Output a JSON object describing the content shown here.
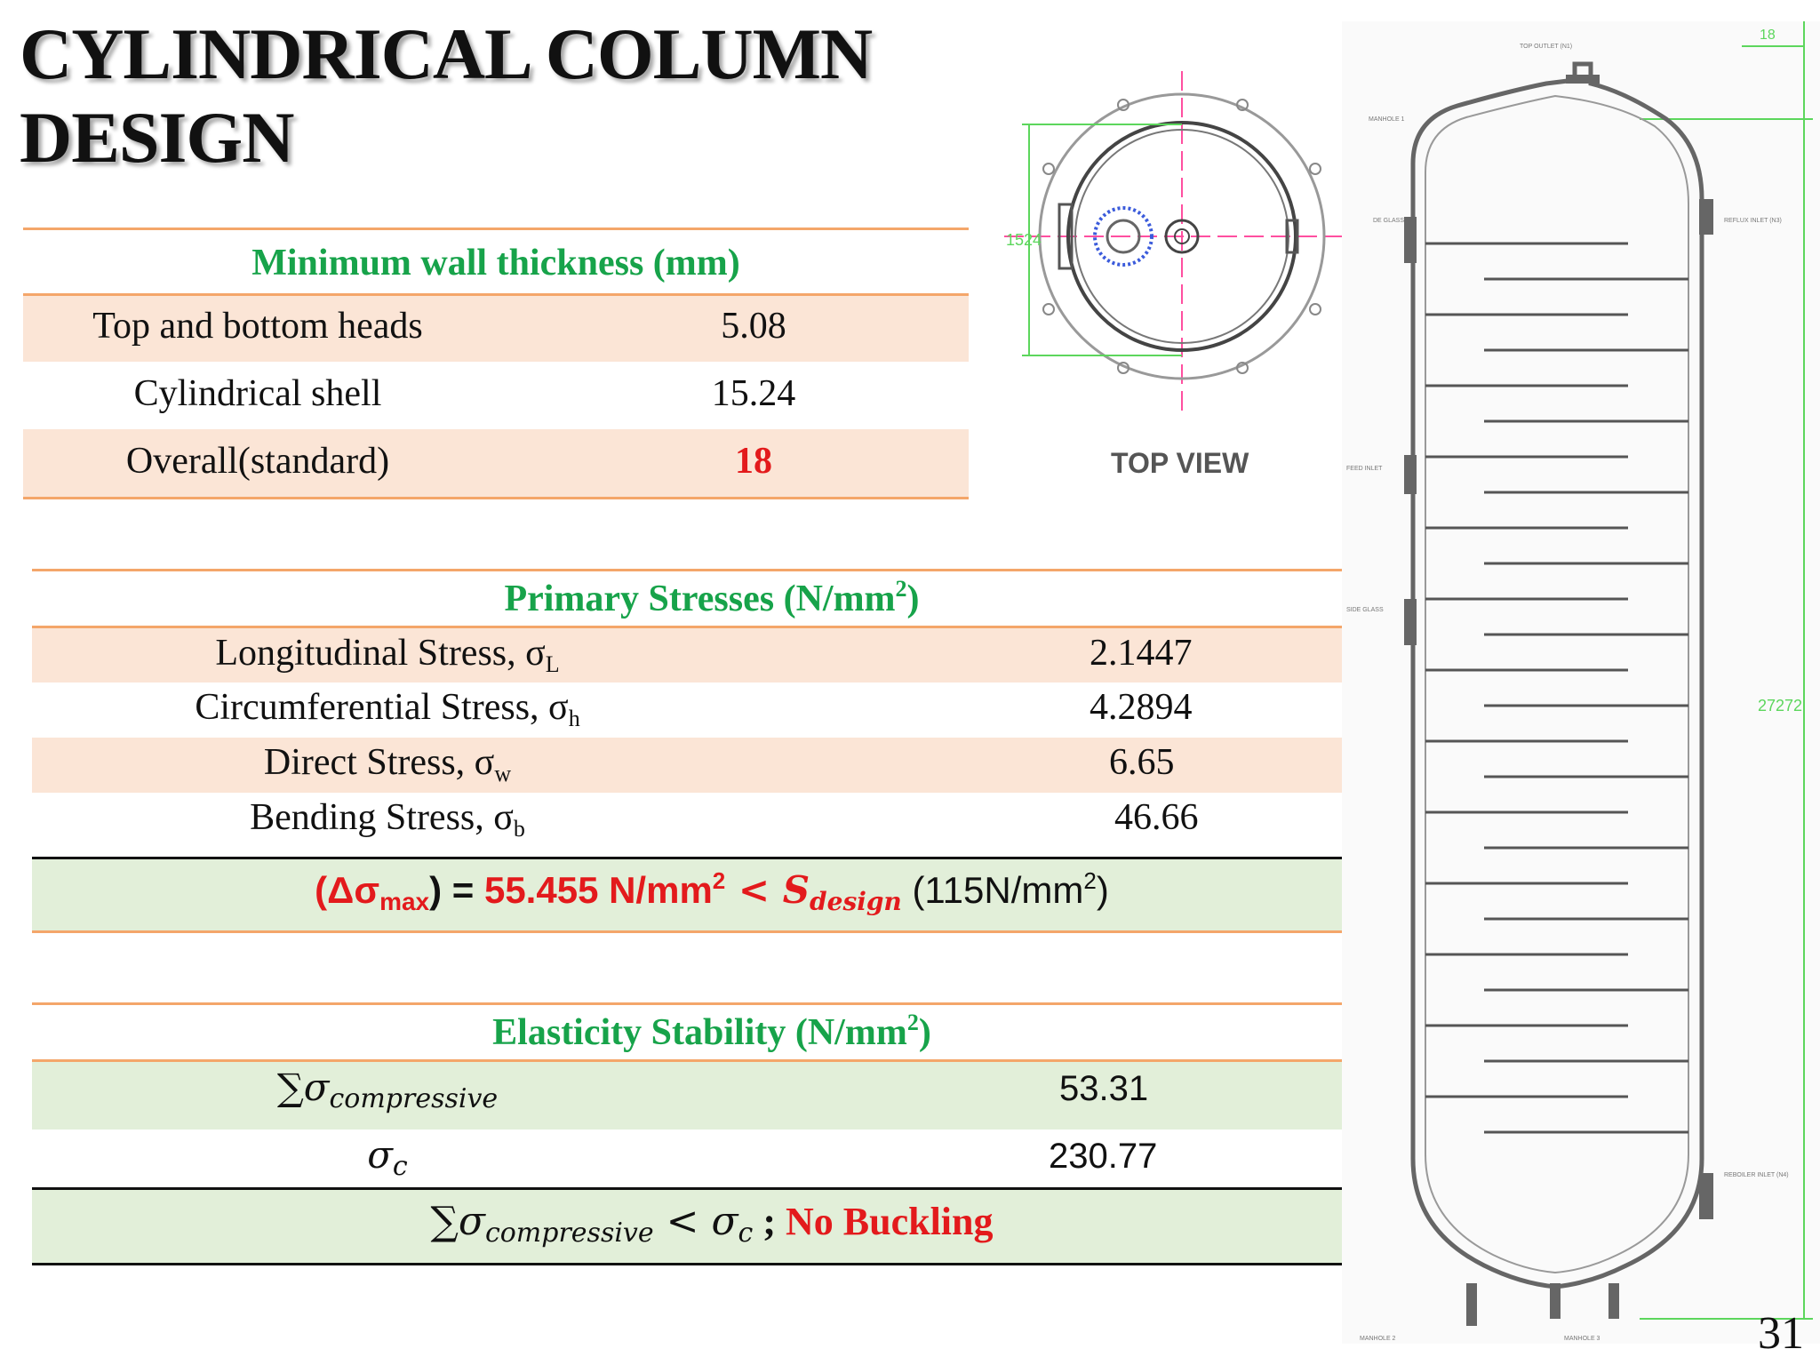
{
  "title_line1": "CYLINDRICAL COLUMN",
  "title_line2": "DESIGN",
  "wall": {
    "header": "Minimum wall thickness (mm)",
    "rows": [
      {
        "label": "Top and bottom heads",
        "value": "5.08"
      },
      {
        "label": "Cylindrical shell",
        "value": "15.24"
      },
      {
        "label": "Overall(standard)",
        "value": "18"
      }
    ]
  },
  "primary": {
    "header_text": "Primary Stresses (N/mm",
    "header_sup": "2",
    "header_close": ")",
    "rows": [
      {
        "label": "Longitudinal Stress, σ",
        "sub": "L",
        "value": "2.1447"
      },
      {
        "label": "Circumferential Stress, σ",
        "sub": "h",
        "value": "4.2894"
      },
      {
        "label": "Direct Stress, σ",
        "sub": "w",
        "value": "6.65"
      },
      {
        "label": "Bending Stress, σ",
        "sub": "b",
        "value": "46.66"
      }
    ],
    "summary": {
      "open": "(Δσ",
      "sub_max": "max",
      "close": ") = ",
      "value": "55.455 N/mm",
      "sup": "2",
      "lt": " < S",
      "sub_design": "design",
      "limit": " (115N/mm",
      "limit_sup": "2",
      "limit_close": ")"
    }
  },
  "elastic": {
    "header_text": "Elasticity Stability (N/mm",
    "header_sup": "2",
    "header_close": ")",
    "row1_sym": "∑σ",
    "row1_sub": "compressive",
    "row1_value": "53.31",
    "row2_sym": "σ",
    "row2_sub": "c",
    "row2_value": "230.77",
    "conclusion_sym": "∑σ",
    "conclusion_sub": "compressive",
    "conclusion_mid": " < σ",
    "conclusion_sub2": "c",
    "conclusion_semi": " ; ",
    "conclusion_result": "No Buckling"
  },
  "drawing": {
    "top_view_label": "TOP VIEW",
    "dim_height": "27272",
    "dim_top": "18",
    "dim_left": "1524",
    "callouts": [
      "TOP OUTLET (N1)",
      "MANHOLE 1",
      "DE GLASS",
      "REFLUX INLET (N3)",
      "FEED INLET",
      "SIDE GLASS",
      "REBOILER INLET (N4)",
      "MANHOLE 2",
      "MANHOLE 3"
    ]
  },
  "page_number": "31"
}
